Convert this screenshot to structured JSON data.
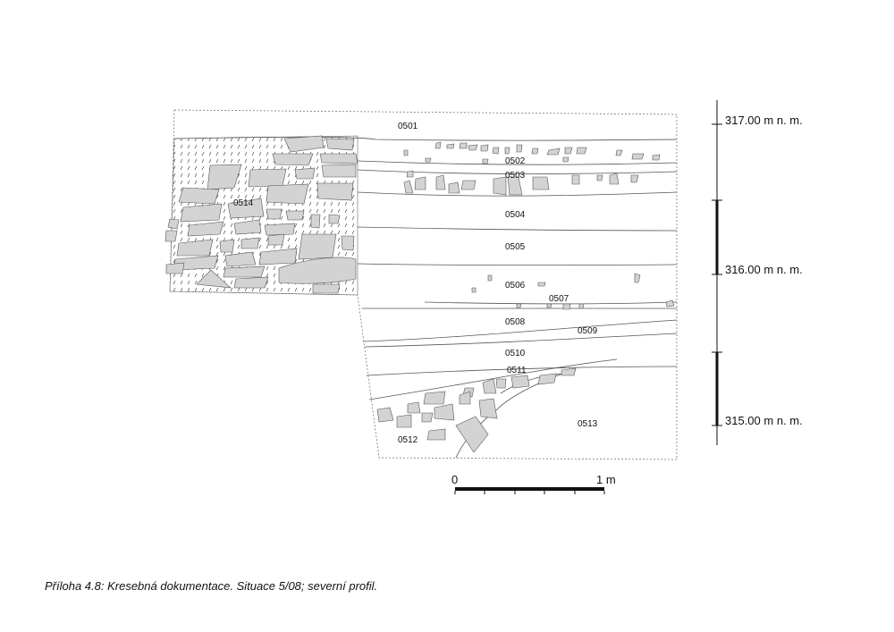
{
  "caption": "Příloha 4.8: Kresebná dokumentace. Situace 5/08; severní profil.",
  "layers": [
    "0501",
    "0502",
    "0503",
    "0504",
    "0505",
    "0506",
    "0507",
    "0508",
    "0509",
    "0510",
    "0511",
    "0512",
    "0513",
    "0514"
  ],
  "elevations": [
    "317.00 m n. m.",
    "316.00 m n. m.",
    "315.00 m n. m."
  ],
  "scale": {
    "start": "0",
    "end": "1 m"
  },
  "colors": {
    "stone_fill": "#d3d3d3",
    "line": "#555555"
  }
}
